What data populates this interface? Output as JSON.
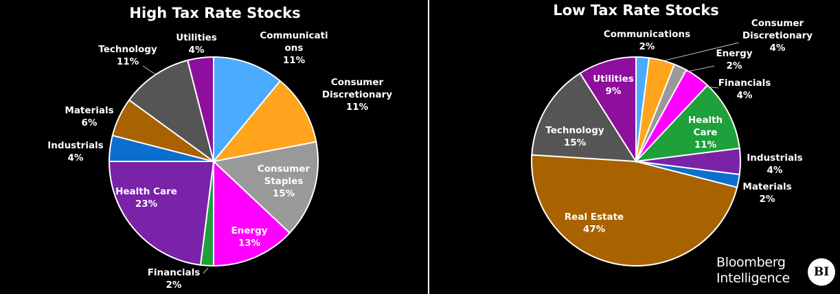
{
  "chart_data": [
    {
      "type": "pie",
      "title": "High Tax Rate Stocks",
      "slices": [
        {
          "label": [
            "Communicati",
            "ons"
          ],
          "value": 11,
          "pct": "11%",
          "color": "#4aabff"
        },
        {
          "label": [
            "Consumer",
            "Discretionary"
          ],
          "value": 11,
          "pct": "11%",
          "color": "#ffa41c"
        },
        {
          "label": [
            "Consumer",
            "Staples"
          ],
          "value": 15,
          "pct": "15%",
          "color": "#999999"
        },
        {
          "label": [
            "Energy"
          ],
          "value": 13,
          "pct": "13%",
          "color": "#ff00ff"
        },
        {
          "label": [
            "Financials"
          ],
          "value": 2,
          "pct": "2%",
          "color": "#1ea03a"
        },
        {
          "label": [
            "Health Care"
          ],
          "value": 23,
          "pct": "23%",
          "color": "#7a22a8"
        },
        {
          "label": [
            "Industrials"
          ],
          "value": 4,
          "pct": "4%",
          "color": "#0b6fcf"
        },
        {
          "label": [
            "Materials"
          ],
          "value": 6,
          "pct": "6%",
          "color": "#a86200"
        },
        {
          "label": [
            "Technology"
          ],
          "value": 11,
          "pct": "11%",
          "color": "#555555"
        },
        {
          "label": [
            "Utilities"
          ],
          "value": 4,
          "pct": "4%",
          "color": "#8e0e9e"
        }
      ]
    },
    {
      "type": "pie",
      "title": "Low Tax Rate Stocks",
      "slices": [
        {
          "label": [
            "Communications"
          ],
          "value": 2,
          "pct": "2%",
          "color": "#4aabff"
        },
        {
          "label": [
            "Consumer",
            "Discretionary"
          ],
          "value": 4,
          "pct": "4%",
          "color": "#ffa41c"
        },
        {
          "label": [
            "Energy"
          ],
          "value": 2,
          "pct": "2%",
          "color": "#999999"
        },
        {
          "label": [
            "Financials"
          ],
          "value": 4,
          "pct": "4%",
          "color": "#ff00ff"
        },
        {
          "label": [
            "Health",
            "Care"
          ],
          "value": 11,
          "pct": "11%",
          "color": "#1ea03a"
        },
        {
          "label": [
            "Industrials"
          ],
          "value": 4,
          "pct": "4%",
          "color": "#7a22a8"
        },
        {
          "label": [
            "Materials"
          ],
          "value": 2,
          "pct": "2%",
          "color": "#0b6fcf"
        },
        {
          "label": [
            "Real Estate"
          ],
          "value": 47,
          "pct": "47%",
          "color": "#a86200"
        },
        {
          "label": [
            "Technology"
          ],
          "value": 15,
          "pct": "15%",
          "color": "#555555"
        },
        {
          "label": [
            "Utilities"
          ],
          "value": 9,
          "pct": "9%",
          "color": "#8e0e9e"
        }
      ]
    }
  ],
  "branding": {
    "line1": "Bloomberg",
    "line2": "Intelligence",
    "badge": "BI"
  }
}
